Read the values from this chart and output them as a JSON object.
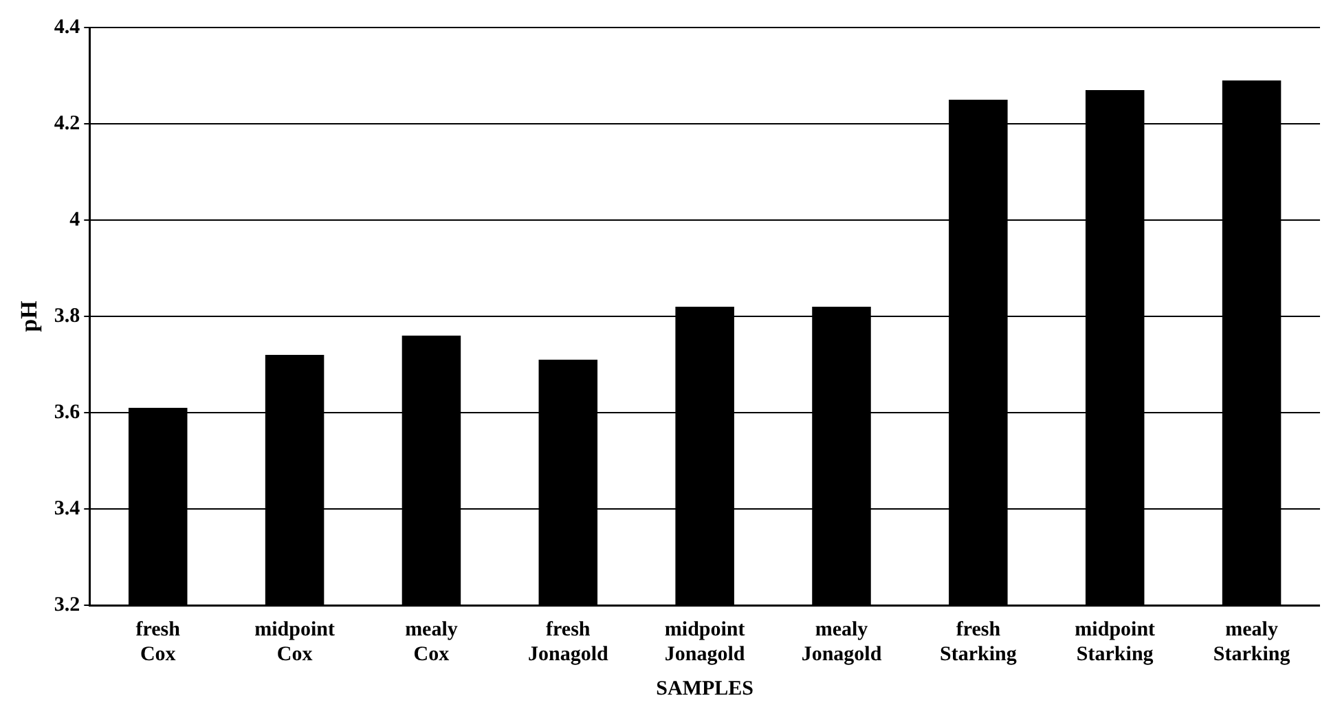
{
  "chart_data": {
    "type": "bar",
    "xlabel": "SAMPLES",
    "ylabel": "pH",
    "categories": [
      "fresh Cox",
      "midpoint Cox",
      "mealy Cox",
      "fresh Jonagold",
      "midpoint Jonagold",
      "mealy Jonagold",
      "fresh Starking",
      "midpoint Starking",
      "mealy Starking"
    ],
    "values": [
      3.61,
      3.72,
      3.76,
      3.71,
      3.82,
      3.82,
      4.25,
      4.27,
      4.29
    ],
    "color": "#000000",
    "ylim": [
      3.2,
      4.4
    ],
    "yticks": [
      3.2,
      3.4,
      3.6,
      3.8,
      4,
      4.2,
      4.4
    ],
    "grid": "y"
  }
}
